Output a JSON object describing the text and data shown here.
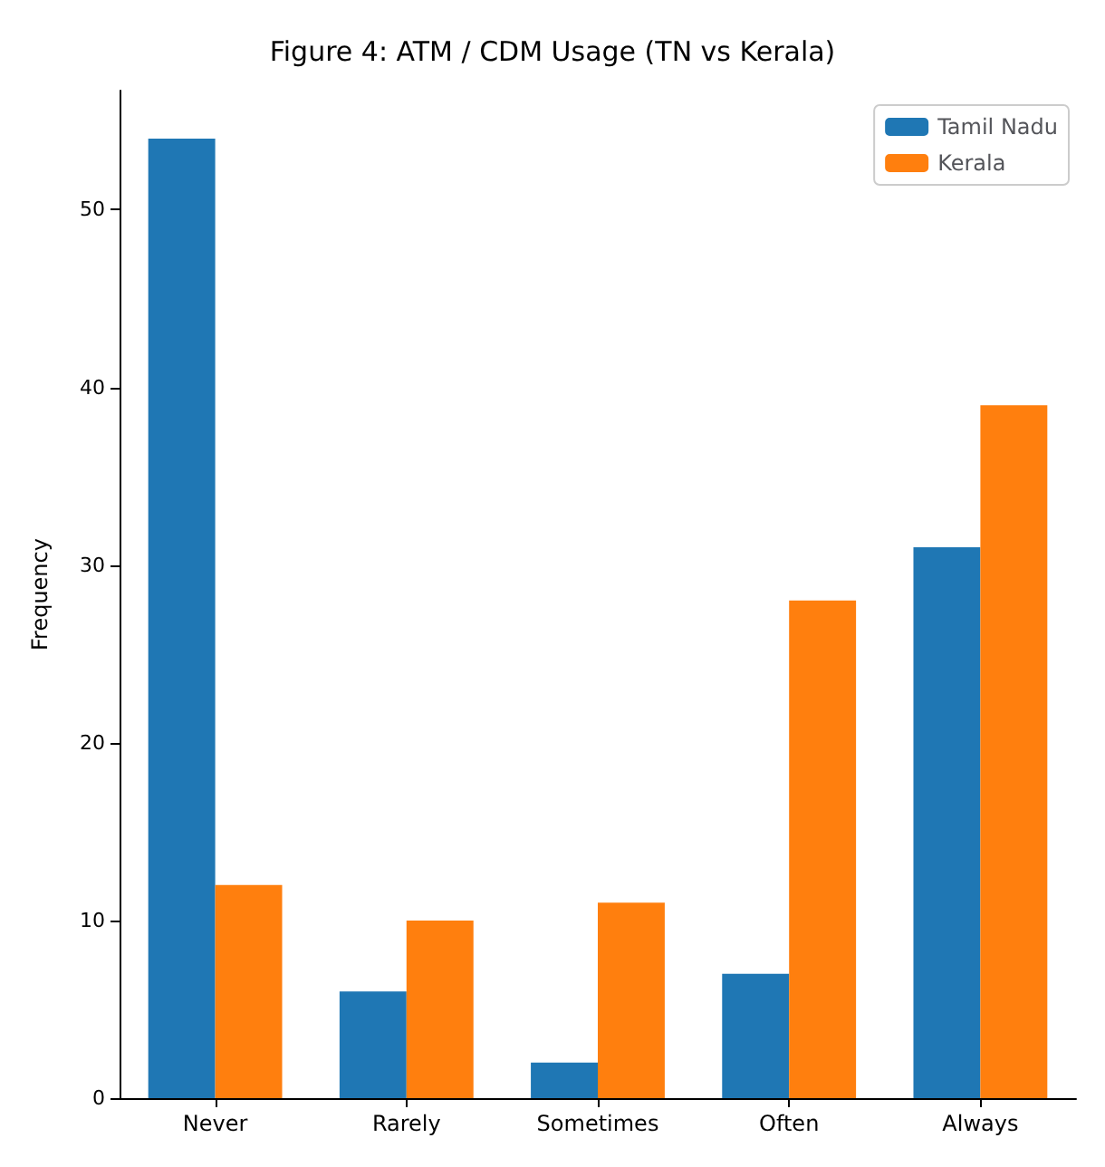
{
  "chart_data": {
    "type": "bar",
    "title": "Figure 4: ATM / CDM Usage (TN vs Kerala)",
    "ylabel": "Frequency",
    "categories": [
      "Never",
      "Rarely",
      "Sometimes",
      "Often",
      "Always"
    ],
    "series": [
      {
        "name": "Tamil Nadu",
        "color": "#1f77b4",
        "values": [
          54,
          6,
          2,
          7,
          31
        ]
      },
      {
        "name": "Kerala",
        "color": "#ff7f0e",
        "values": [
          12,
          10,
          11,
          28,
          39
        ]
      }
    ],
    "ylim": [
      0,
      56.7
    ],
    "yticks": [
      0,
      10,
      20,
      30,
      40,
      50
    ],
    "grid": false,
    "legend": "top right"
  }
}
